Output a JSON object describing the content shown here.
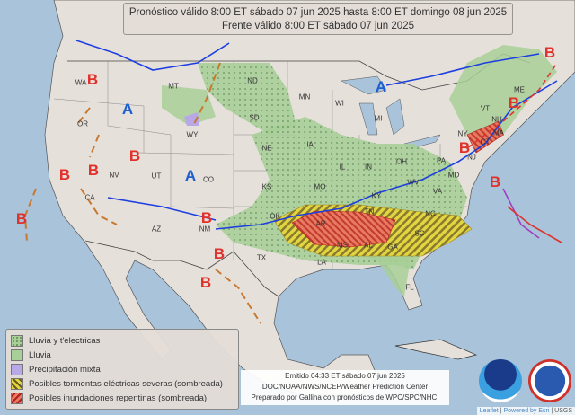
{
  "header": {
    "line1": "Pronóstico válido 8:00 ET sábado 07 jun 2025 hasta 8:00 ET domingo 08 jun 2025",
    "line2": "Frente válido 8:00 ET sábado 07 jun 2025"
  },
  "legend": [
    {
      "label": "Lluvia y t'electricas",
      "color": "#a8cf98",
      "pattern": "dots"
    },
    {
      "label": "Lluvia",
      "color": "#a8cf98",
      "pattern": "solid"
    },
    {
      "label": "Precipitación mixta",
      "color": "#b8a8e8",
      "pattern": "solid"
    },
    {
      "label": "Posibles tormentas eléctricas severas (sombreada)",
      "color": "#d8c830",
      "pattern": "hatch"
    },
    {
      "label": "Posibles inundaciones repentinas (sombreada)",
      "color": "#d85040",
      "pattern": "hatch"
    }
  ],
  "credit": {
    "line1": "Emitido 04:33 ET sábado 07 jun 2025",
    "line2": "DOC/NOAA/NWS/NCEP/Weather Prediction Center",
    "line3": "Preparado por Gallina con pronósticos de WPC/SPC/NHC."
  },
  "attribution": {
    "leaflet": "Leaflet",
    "powered": "Powered by Esri",
    "usgs": "USGS"
  },
  "logos": {
    "noaa": "NOAA",
    "nws": "NATIONAL WEATHER SERVICE"
  },
  "states": [
    "WA",
    "OR",
    "CA",
    "NV",
    "UT",
    "AZ",
    "MT",
    "WY",
    "CO",
    "NM",
    "ND",
    "SD",
    "NE",
    "KS",
    "OK",
    "TX",
    "MN",
    "IA",
    "MO",
    "AR",
    "LA",
    "WI",
    "IL",
    "MI",
    "IN",
    "OH",
    "KY",
    "TN",
    "MS",
    "AL",
    "GA",
    "FL",
    "SC",
    "NC",
    "VA",
    "WV",
    "PA",
    "NY",
    "VT",
    "NH",
    "ME",
    "MA",
    "CT",
    "NJ",
    "MD"
  ],
  "pressure_centers": {
    "low": "B",
    "high": "A"
  },
  "colors": {
    "low": "#e0312b",
    "high": "#1d5fd0",
    "cold_front": "#1d3fe0",
    "warm_front": "#e0312b",
    "ocean": "#a8c3da",
    "land": "#e6e0db"
  }
}
